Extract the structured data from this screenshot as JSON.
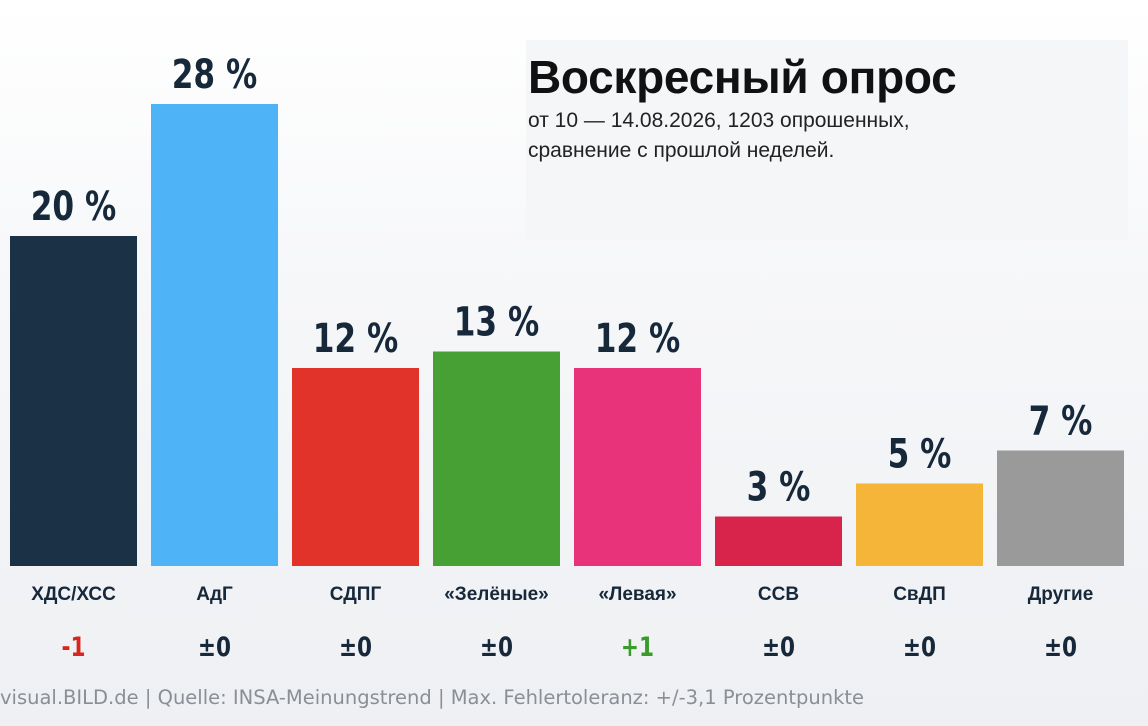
{
  "header": {
    "title": "Воскресный опрос",
    "subtitle_line1": "от 10 — 14.08.2026, 1203 опрошенных,",
    "subtitle_line2": "сравнение с прошлой неделей."
  },
  "footer": {
    "source": "visual.BILD.de | Quelle: INSA-Meinungstrend | Max. Fehlertoleranz: +/-3,1 Prozentpunkte"
  },
  "chart_data": {
    "type": "bar",
    "title": "Воскресный опрос",
    "categories": [
      "ХДС/ХСС",
      "АдГ",
      "СДПГ",
      "«Зелёные»",
      "«Левая»",
      "ССВ",
      "СвДП",
      "Другие"
    ],
    "values": [
      20,
      28,
      12,
      13,
      12,
      3,
      5,
      7
    ],
    "value_labels": [
      "20 %",
      "28 %",
      "12 %",
      "13 %",
      "12 %",
      "3 %",
      "5 %",
      "7 %"
    ],
    "changes": [
      "-1",
      "±0",
      "±0",
      "±0",
      "+1",
      "±0",
      "±0",
      "±0"
    ],
    "unit": "%",
    "colors": [
      "#1b3246",
      "#4fb4f7",
      "#e2332a",
      "#46a033",
      "#e8337a",
      "#d8234a",
      "#f4b538",
      "#9a9a9a"
    ],
    "change_colors": {
      "negative": "#d9261c",
      "positive": "#3a9a2a",
      "neutral": "#16283a"
    },
    "ylim": [
      0,
      30
    ],
    "grid": false,
    "legend": "none"
  }
}
